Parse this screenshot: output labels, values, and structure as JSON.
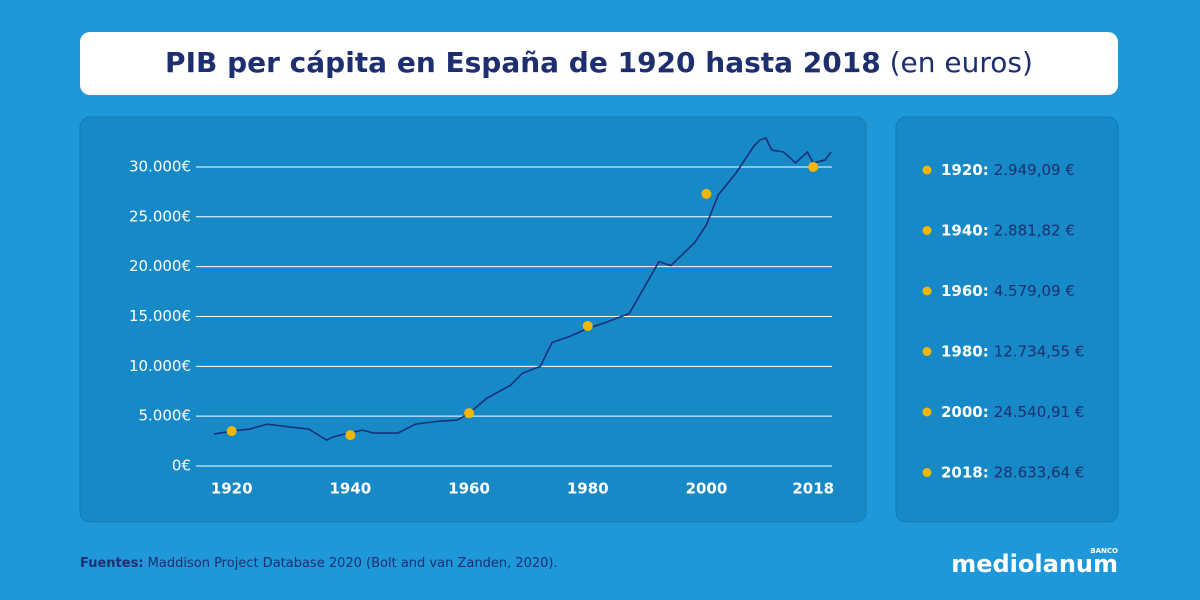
{
  "chart_data": {
    "type": "line",
    "title": "PIB per cápita en España de 1920 hasta 2018",
    "subtitle": "(en euros)",
    "x": [
      1917,
      1920,
      1923,
      1926,
      1930,
      1933,
      1936,
      1937,
      1939,
      1942,
      1944,
      1948,
      1951,
      1955,
      1958,
      1960,
      1963,
      1967,
      1969,
      1972,
      1974,
      1977,
      1980,
      1983,
      1987,
      1992,
      1994,
      1998,
      2000,
      2002,
      2005,
      2008,
      2009,
      2010,
      2011,
      2013,
      2015,
      2017,
      2018,
      2020,
      2021
    ],
    "series": [
      {
        "color": "#1a2f7a",
        "values": [
          3200,
          3500,
          3700,
          4200,
          3900,
          3700,
          2600,
          2900,
          3200,
          3600,
          3300,
          3300,
          4200,
          4500,
          4600,
          5300,
          6800,
          8100,
          9300,
          10000,
          12400,
          13000,
          13800,
          14400,
          15300,
          20500,
          20100,
          22400,
          24200,
          27200,
          29400,
          32100,
          32700,
          32900,
          31700,
          31500,
          30400,
          31500,
          30400,
          30700,
          31500
        ]
      }
    ],
    "highlights": {
      "color": "#f2b705",
      "x": [
        1920,
        1940,
        1960,
        1980,
        2000,
        2018
      ],
      "values": [
        3500,
        3100,
        5300,
        14050,
        27300,
        30000
      ]
    },
    "xlim": [
      1915,
      2022
    ],
    "xticks": [
      1920,
      1940,
      1960,
      1980,
      2000,
      2018
    ],
    "ylim": [
      0,
      32000
    ],
    "yticks": [
      {
        "value": 0,
        "label": "0€"
      },
      {
        "value": 5000,
        "label": "5.000€"
      },
      {
        "value": 10000,
        "label": "10.000€"
      },
      {
        "value": 15000,
        "label": "15.000€"
      },
      {
        "value": 20000,
        "label": "20.000€"
      },
      {
        "value": 25000,
        "label": "25.000€"
      },
      {
        "value": 30000,
        "label": "30.000€"
      }
    ],
    "grid": true,
    "legend_items": [
      {
        "year": "1920:",
        "value": "2.949,09 €"
      },
      {
        "year": "1940:",
        "value": "2.881,82 €"
      },
      {
        "year": "1960:",
        "value": "4.579,09 €"
      },
      {
        "year": "1980:",
        "value": "12.734,55 €"
      },
      {
        "year": "2000:",
        "value": "24.540,91 €"
      },
      {
        "year": "2018:",
        "value": "28.633,64 €"
      }
    ],
    "source_label": "Fuentes:",
    "source": "Maddison Project Database 2020 (Bolt and van Zanden, 2020).",
    "brand_small": "BANCO",
    "brand": "mediolanum"
  }
}
